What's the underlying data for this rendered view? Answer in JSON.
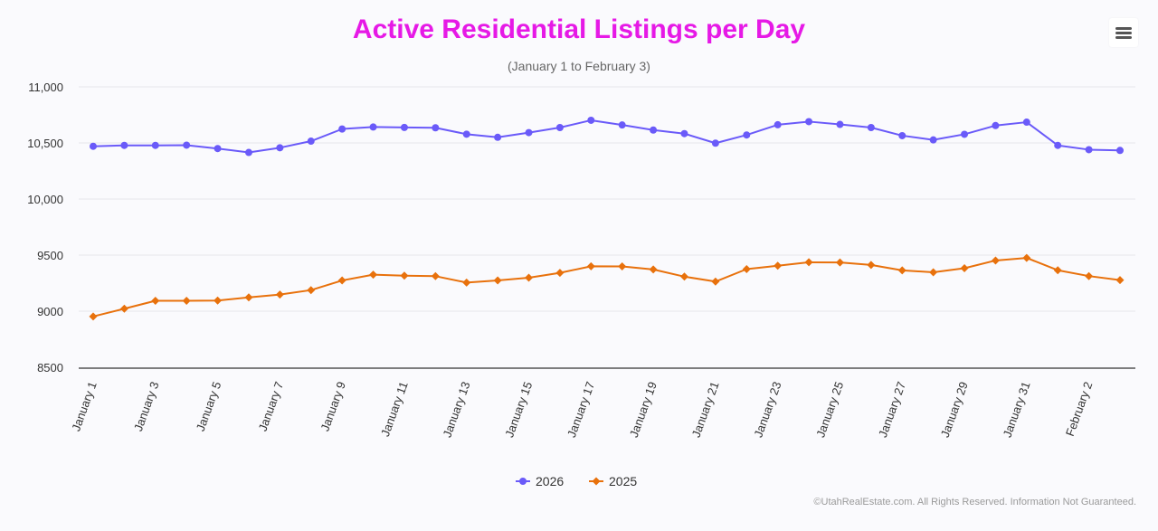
{
  "chart_data": {
    "type": "line",
    "title": "Active Residential Listings per Day",
    "subtitle": "(January 1 to February 3)",
    "xlabel": "",
    "ylabel": "",
    "ylim": [
      8500,
      11000
    ],
    "yticks": [
      8500,
      9000,
      9500,
      10000,
      10500,
      11000
    ],
    "ytick_labels": [
      "8500",
      "9000",
      "9500",
      "10,000",
      "10,500",
      "11,000"
    ],
    "categories": [
      "January 1",
      "January 2",
      "January 3",
      "January 4",
      "January 5",
      "January 6",
      "January 7",
      "January 8",
      "January 9",
      "January 10",
      "January 11",
      "January 12",
      "January 13",
      "January 14",
      "January 15",
      "January 16",
      "January 17",
      "January 18",
      "January 19",
      "January 20",
      "January 21",
      "January 22",
      "January 23",
      "January 24",
      "January 25",
      "January 26",
      "January 27",
      "January 28",
      "January 29",
      "January 30",
      "January 31",
      "February 1",
      "February 2",
      "February 3"
    ],
    "xtick_labels": [
      "January 1",
      "January 3",
      "January 5",
      "January 7",
      "January 9",
      "January 11",
      "January 13",
      "January 15",
      "January 17",
      "January 19",
      "January 21",
      "January 23",
      "January 25",
      "January 27",
      "January 29",
      "January 31",
      "February 2"
    ],
    "series": [
      {
        "name": "2026",
        "color": "#6a5af9",
        "marker": "circle",
        "values": [
          10470,
          10478,
          10478,
          10480,
          10450,
          10415,
          10457,
          10516,
          10624,
          10642,
          10638,
          10635,
          10578,
          10550,
          10592,
          10637,
          10702,
          10660,
          10615,
          10583,
          10498,
          10571,
          10662,
          10690,
          10665,
          10637,
          10565,
          10527,
          10577,
          10655,
          10685,
          10478,
          10440,
          10433
        ]
      },
      {
        "name": "2025",
        "color": "#e8710c",
        "marker": "diamond",
        "values": [
          8953,
          9022,
          9093,
          9093,
          9095,
          9123,
          9148,
          9188,
          9274,
          9326,
          9317,
          9312,
          9255,
          9274,
          9298,
          9342,
          9400,
          9399,
          9372,
          9308,
          9264,
          9375,
          9405,
          9436,
          9434,
          9412,
          9364,
          9347,
          9383,
          9452,
          9475,
          9365,
          9313,
          9277
        ]
      }
    ],
    "legend_position": "bottom-center",
    "grid": true
  },
  "credits": "©UtahRealEstate.com. All Rights Reserved. Information Not Guaranteed.",
  "menu": {
    "icon": "hamburger-menu-icon"
  }
}
